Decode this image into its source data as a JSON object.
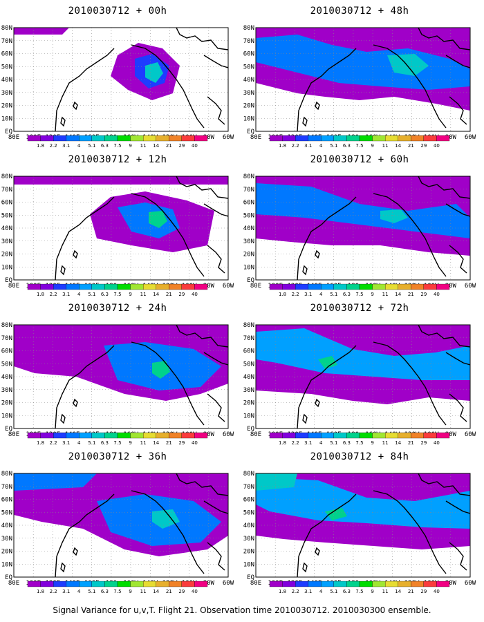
{
  "panels": [
    {
      "title": "2010030712 + 00h",
      "col": 0,
      "row": 0
    },
    {
      "title": "2010030712 + 48h",
      "col": 1,
      "row": 0
    },
    {
      "title": "2010030712 + 12h",
      "col": 0,
      "row": 1
    },
    {
      "title": "2010030712 + 60h",
      "col": 1,
      "row": 1
    },
    {
      "title": "2010030712 + 24h",
      "col": 0,
      "row": 2
    },
    {
      "title": "2010030712 + 72h",
      "col": 1,
      "row": 2
    },
    {
      "title": "2010030712 + 36h",
      "col": 0,
      "row": 3
    },
    {
      "title": "2010030712 + 84h",
      "col": 1,
      "row": 3
    }
  ],
  "lat_labels": [
    "80N",
    "70N",
    "60N",
    "50N",
    "40N",
    "30N",
    "20N",
    "10N",
    "EQ"
  ],
  "lon_labels": [
    "80E",
    "100E",
    "120E",
    "140E",
    "160E",
    "180",
    "160W",
    "140W",
    "120W",
    "100W",
    "80W",
    "60W"
  ],
  "colorbar": {
    "labels": [
      "1.8",
      "2.2",
      "3.1",
      "4",
      "5.1",
      "6.3",
      "7.5",
      "9",
      "11",
      "14",
      "21",
      "29",
      "40"
    ],
    "colors": [
      "#a000c8",
      "#8200dc",
      "#1e3cff",
      "#0078ff",
      "#00a0ff",
      "#00c8c8",
      "#00d28c",
      "#00dc00",
      "#a0e632",
      "#e6dc32",
      "#e6af2d",
      "#f08228",
      "#fa3c3c",
      "#f00082"
    ]
  },
  "caption": "Signal Variance for u,v,T. Flight 21. Observation time 2010030712. 2010030300 ensemble."
}
